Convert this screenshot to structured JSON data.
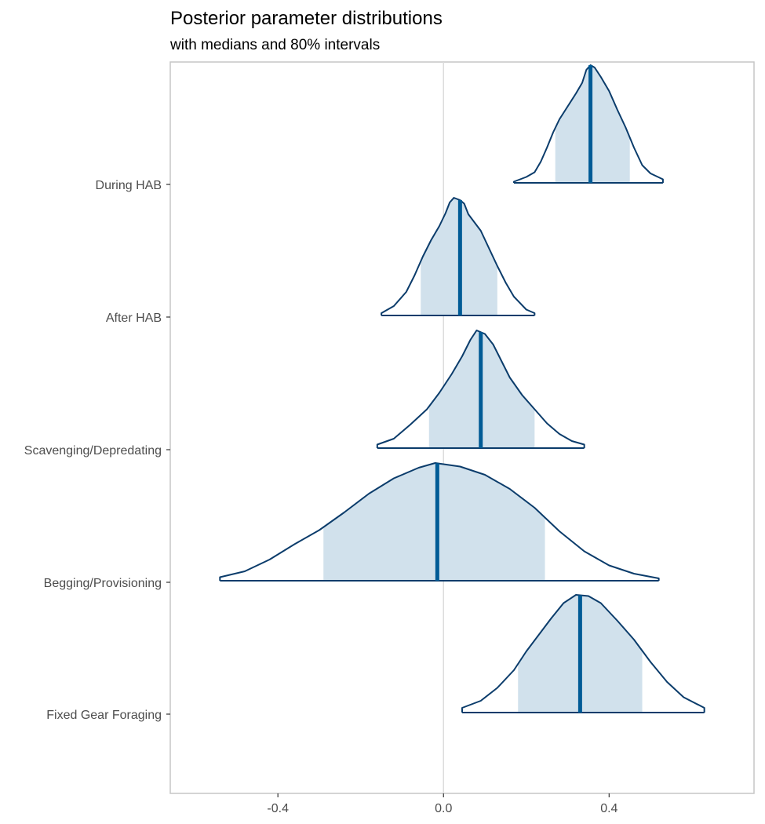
{
  "chart_data": {
    "type": "area",
    "title": "Posterior parameter distributions",
    "subtitle": "with medians and 80% intervals",
    "xlabel": "",
    "ylabel": "",
    "xlim": [
      -0.66,
      0.75
    ],
    "x_ticks": [
      -0.4,
      0.0,
      0.4
    ],
    "x_tick_labels": [
      "-0.4",
      "0.0",
      "0.4"
    ],
    "reference_line_x": 0.0,
    "grid": false,
    "colors": {
      "outline": "#0b3c6b",
      "fill": "#d1e1ec",
      "median": "#005b96",
      "reference": "#dcdcdc",
      "border": "#c6c6c6"
    },
    "series": [
      {
        "name": "During HAB",
        "median": 0.355,
        "interval80": [
          0.27,
          0.45
        ],
        "density": [
          [
            0.17,
            0.01
          ],
          [
            0.2,
            0.05
          ],
          [
            0.22,
            0.09
          ],
          [
            0.235,
            0.18
          ],
          [
            0.25,
            0.3
          ],
          [
            0.265,
            0.43
          ],
          [
            0.28,
            0.54
          ],
          [
            0.3,
            0.65
          ],
          [
            0.32,
            0.76
          ],
          [
            0.335,
            0.85
          ],
          [
            0.345,
            0.96
          ],
          [
            0.355,
            1.0
          ],
          [
            0.365,
            0.98
          ],
          [
            0.38,
            0.9
          ],
          [
            0.4,
            0.78
          ],
          [
            0.42,
            0.62
          ],
          [
            0.44,
            0.47
          ],
          [
            0.46,
            0.3
          ],
          [
            0.48,
            0.15
          ],
          [
            0.5,
            0.08
          ],
          [
            0.53,
            0.03
          ]
        ]
      },
      {
        "name": "After HAB",
        "median": 0.04,
        "interval80": [
          -0.055,
          0.13
        ],
        "density": [
          [
            -0.15,
            0.02
          ],
          [
            -0.12,
            0.08
          ],
          [
            -0.09,
            0.2
          ],
          [
            -0.07,
            0.34
          ],
          [
            -0.05,
            0.5
          ],
          [
            -0.03,
            0.64
          ],
          [
            -0.01,
            0.76
          ],
          [
            0.005,
            0.87
          ],
          [
            0.015,
            0.96
          ],
          [
            0.025,
            1.0
          ],
          [
            0.04,
            0.98
          ],
          [
            0.05,
            0.95
          ],
          [
            0.06,
            0.86
          ],
          [
            0.075,
            0.79
          ],
          [
            0.09,
            0.72
          ],
          [
            0.11,
            0.57
          ],
          [
            0.13,
            0.42
          ],
          [
            0.15,
            0.28
          ],
          [
            0.17,
            0.16
          ],
          [
            0.2,
            0.05
          ],
          [
            0.22,
            0.02
          ]
        ]
      },
      {
        "name": "Scavenging/Depredating",
        "median": 0.09,
        "interval80": [
          -0.035,
          0.22
        ],
        "density": [
          [
            -0.16,
            0.03
          ],
          [
            -0.12,
            0.08
          ],
          [
            -0.08,
            0.2
          ],
          [
            -0.04,
            0.33
          ],
          [
            -0.01,
            0.47
          ],
          [
            0.02,
            0.63
          ],
          [
            0.045,
            0.78
          ],
          [
            0.065,
            0.92
          ],
          [
            0.08,
            1.0
          ],
          [
            0.1,
            0.97
          ],
          [
            0.12,
            0.88
          ],
          [
            0.14,
            0.74
          ],
          [
            0.16,
            0.6
          ],
          [
            0.19,
            0.45
          ],
          [
            0.22,
            0.33
          ],
          [
            0.25,
            0.21
          ],
          [
            0.28,
            0.12
          ],
          [
            0.31,
            0.06
          ],
          [
            0.34,
            0.03
          ]
        ]
      },
      {
        "name": "Begging/Provisioning",
        "median": -0.015,
        "interval80": [
          -0.29,
          0.245
        ],
        "density": [
          [
            -0.54,
            0.03
          ],
          [
            -0.48,
            0.08
          ],
          [
            -0.42,
            0.18
          ],
          [
            -0.36,
            0.31
          ],
          [
            -0.3,
            0.43
          ],
          [
            -0.24,
            0.58
          ],
          [
            -0.18,
            0.74
          ],
          [
            -0.12,
            0.87
          ],
          [
            -0.06,
            0.96
          ],
          [
            -0.02,
            1.0
          ],
          [
            0.04,
            0.97
          ],
          [
            0.1,
            0.9
          ],
          [
            0.16,
            0.78
          ],
          [
            0.22,
            0.62
          ],
          [
            0.28,
            0.42
          ],
          [
            0.34,
            0.25
          ],
          [
            0.4,
            0.13
          ],
          [
            0.46,
            0.06
          ],
          [
            0.52,
            0.02
          ]
        ]
      },
      {
        "name": "Fixed Gear Foraging",
        "median": 0.33,
        "interval80": [
          0.18,
          0.48
        ],
        "density": [
          [
            0.045,
            0.04
          ],
          [
            0.09,
            0.1
          ],
          [
            0.13,
            0.21
          ],
          [
            0.17,
            0.36
          ],
          [
            0.2,
            0.52
          ],
          [
            0.23,
            0.66
          ],
          [
            0.26,
            0.8
          ],
          [
            0.29,
            0.93
          ],
          [
            0.32,
            1.0
          ],
          [
            0.35,
            0.99
          ],
          [
            0.38,
            0.93
          ],
          [
            0.42,
            0.78
          ],
          [
            0.46,
            0.62
          ],
          [
            0.5,
            0.43
          ],
          [
            0.54,
            0.26
          ],
          [
            0.58,
            0.13
          ],
          [
            0.63,
            0.04
          ]
        ]
      }
    ]
  }
}
